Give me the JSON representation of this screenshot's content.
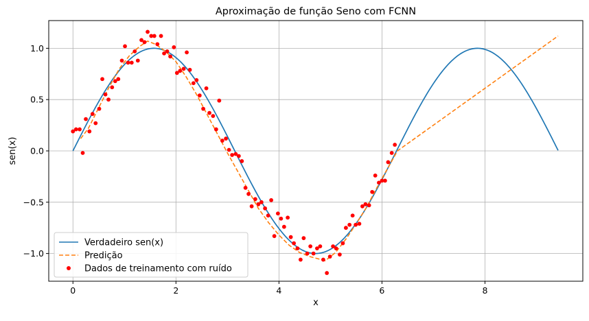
{
  "chart_data": {
    "type": "line",
    "title": "Aproximação de função Seno com FCNN",
    "xlabel": "x",
    "ylabel": "sen(x)",
    "xlim": [
      -0.47,
      9.9
    ],
    "ylim": [
      -1.27,
      1.27
    ],
    "xticks": [
      0,
      2,
      4,
      6,
      8
    ],
    "yticks": [
      -1.0,
      -0.5,
      0.0,
      0.5,
      1.0
    ],
    "xtick_labels": [
      "0",
      "2",
      "4",
      "6",
      "8"
    ],
    "ytick_labels": [
      "−1.0",
      "−0.5",
      "0.0",
      "0.5",
      "1.0"
    ],
    "grid": true,
    "legend_position": "lower-left",
    "colors": {
      "true": "#1f77b4",
      "pred": "#ff7f0e",
      "train": "#ff0000",
      "grid": "#b0b0b0"
    },
    "series": [
      {
        "name": "Verdadeiro sen(x)",
        "kind": "line",
        "function": "sin",
        "x_range": [
          0,
          9.42
        ]
      },
      {
        "name": "Predição",
        "kind": "dashed-line",
        "x": [
          0.15,
          0.3,
          0.5,
          0.7,
          0.9,
          1.1,
          1.3,
          1.45,
          1.6,
          1.8,
          2.0,
          2.2,
          2.4,
          2.6,
          2.8,
          3.0,
          3.2,
          3.4,
          3.6,
          3.8,
          4.0,
          4.2,
          4.4,
          4.6,
          4.9,
          5.1,
          5.3,
          5.5,
          5.7,
          5.9,
          6.1,
          6.3,
          9.42
        ],
        "y": [
          0.12,
          0.22,
          0.42,
          0.62,
          0.8,
          0.93,
          1.02,
          1.07,
          1.04,
          0.97,
          0.87,
          0.72,
          0.55,
          0.36,
          0.17,
          -0.02,
          -0.2,
          -0.38,
          -0.56,
          -0.7,
          -0.82,
          -0.92,
          -0.99,
          -1.03,
          -1.07,
          -0.99,
          -0.86,
          -0.71,
          -0.55,
          -0.36,
          -0.18,
          0.0,
          1.12
        ]
      },
      {
        "name": "Dados de treinamento com ruído",
        "kind": "scatter",
        "points": [
          [
            0.0,
            0.19
          ],
          [
            0.06,
            0.21
          ],
          [
            0.13,
            0.21
          ],
          [
            0.19,
            -0.02
          ],
          [
            0.25,
            0.31
          ],
          [
            0.32,
            0.19
          ],
          [
            0.38,
            0.36
          ],
          [
            0.44,
            0.27
          ],
          [
            0.51,
            0.41
          ],
          [
            0.57,
            0.7
          ],
          [
            0.63,
            0.55
          ],
          [
            0.69,
            0.5
          ],
          [
            0.76,
            0.62
          ],
          [
            0.82,
            0.68
          ],
          [
            0.88,
            0.7
          ],
          [
            0.95,
            0.88
          ],
          [
            1.01,
            1.02
          ],
          [
            1.07,
            0.86
          ],
          [
            1.14,
            0.86
          ],
          [
            1.2,
            0.97
          ],
          [
            1.26,
            0.88
          ],
          [
            1.33,
            1.08
          ],
          [
            1.39,
            1.06
          ],
          [
            1.45,
            1.16
          ],
          [
            1.52,
            1.12
          ],
          [
            1.58,
            1.12
          ],
          [
            1.64,
            1.04
          ],
          [
            1.71,
            1.12
          ],
          [
            1.77,
            0.95
          ],
          [
            1.83,
            0.97
          ],
          [
            1.89,
            0.92
          ],
          [
            1.96,
            1.01
          ],
          [
            2.02,
            0.76
          ],
          [
            2.08,
            0.78
          ],
          [
            2.15,
            0.8
          ],
          [
            2.21,
            0.96
          ],
          [
            2.27,
            0.79
          ],
          [
            2.34,
            0.66
          ],
          [
            2.4,
            0.69
          ],
          [
            2.46,
            0.54
          ],
          [
            2.53,
            0.41
          ],
          [
            2.59,
            0.61
          ],
          [
            2.65,
            0.37
          ],
          [
            2.72,
            0.34
          ],
          [
            2.78,
            0.21
          ],
          [
            2.84,
            0.49
          ],
          [
            2.9,
            0.1
          ],
          [
            2.97,
            0.12
          ],
          [
            3.03,
            0.01
          ],
          [
            3.09,
            -0.04
          ],
          [
            3.16,
            -0.03
          ],
          [
            3.22,
            -0.05
          ],
          [
            3.28,
            -0.1
          ],
          [
            3.35,
            -0.36
          ],
          [
            3.41,
            -0.42
          ],
          [
            3.47,
            -0.54
          ],
          [
            3.54,
            -0.47
          ],
          [
            3.6,
            -0.52
          ],
          [
            3.66,
            -0.5
          ],
          [
            3.73,
            -0.56
          ],
          [
            3.79,
            -0.63
          ],
          [
            3.85,
            -0.48
          ],
          [
            3.91,
            -0.83
          ],
          [
            3.98,
            -0.61
          ],
          [
            4.04,
            -0.66
          ],
          [
            4.1,
            -0.74
          ],
          [
            4.17,
            -0.65
          ],
          [
            4.23,
            -0.84
          ],
          [
            4.29,
            -0.9
          ],
          [
            4.36,
            -0.95
          ],
          [
            4.42,
            -1.06
          ],
          [
            4.48,
            -0.85
          ],
          [
            4.55,
            -1.0
          ],
          [
            4.61,
            -0.93
          ],
          [
            4.67,
            -1.0
          ],
          [
            4.74,
            -0.95
          ],
          [
            4.8,
            -0.93
          ],
          [
            4.86,
            -1.06
          ],
          [
            4.93,
            -1.19
          ],
          [
            4.99,
            -1.03
          ],
          [
            5.05,
            -0.93
          ],
          [
            5.11,
            -0.95
          ],
          [
            5.18,
            -1.01
          ],
          [
            5.24,
            -0.9
          ],
          [
            5.3,
            -0.75
          ],
          [
            5.37,
            -0.72
          ],
          [
            5.43,
            -0.63
          ],
          [
            5.49,
            -0.72
          ],
          [
            5.56,
            -0.71
          ],
          [
            5.62,
            -0.54
          ],
          [
            5.68,
            -0.52
          ],
          [
            5.75,
            -0.53
          ],
          [
            5.81,
            -0.4
          ],
          [
            5.87,
            -0.24
          ],
          [
            5.94,
            -0.31
          ],
          [
            6.0,
            -0.29
          ],
          [
            6.06,
            -0.29
          ],
          [
            6.12,
            -0.11
          ],
          [
            6.19,
            -0.02
          ],
          [
            6.25,
            0.06
          ]
        ]
      }
    ]
  }
}
